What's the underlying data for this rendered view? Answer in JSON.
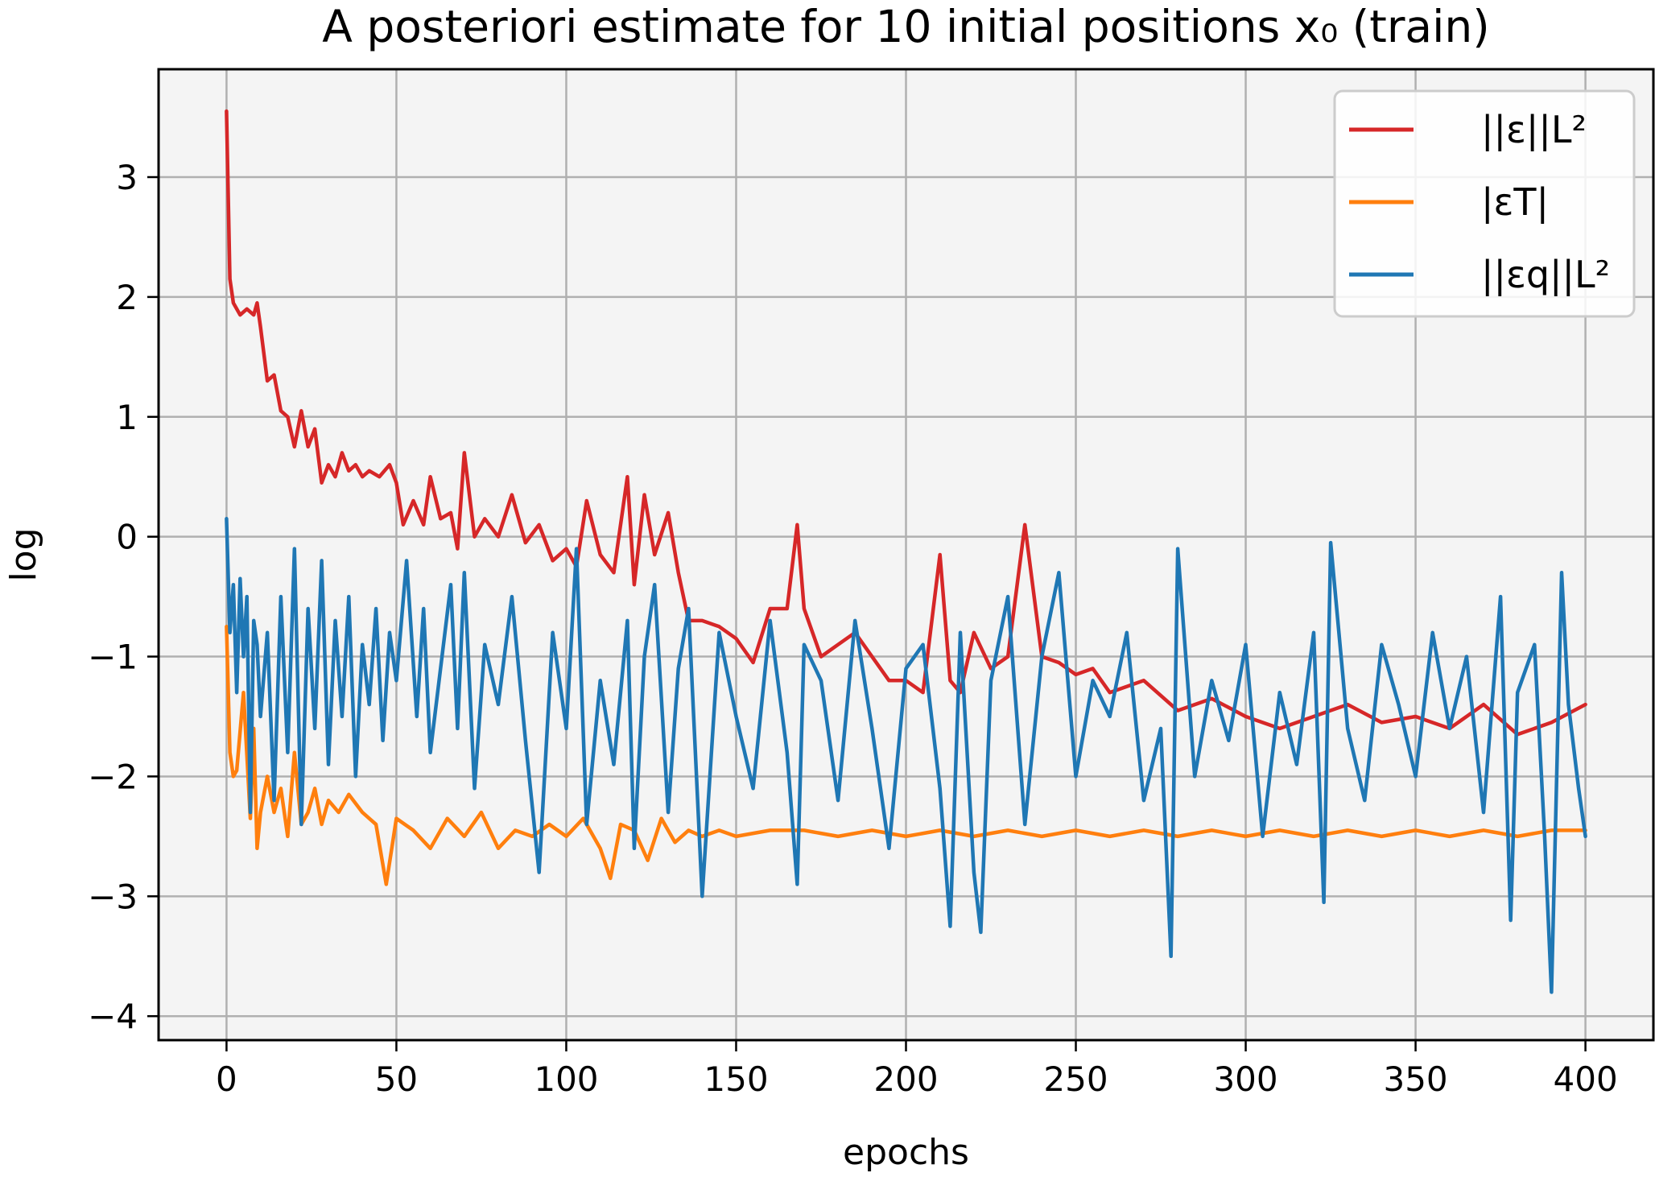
{
  "chart_data": {
    "type": "line",
    "title": "A posteriori estimate for 10 initial positions x₀ (train)",
    "xlabel": "epochs",
    "ylabel": "log",
    "xlim": [
      -20,
      420
    ],
    "ylim": [
      -4.2,
      3.9
    ],
    "xticks": [
      0,
      50,
      100,
      150,
      200,
      250,
      300,
      350,
      400
    ],
    "yticks": [
      3,
      2,
      1,
      0,
      -1,
      -2,
      -3,
      -4
    ],
    "ytick_labels": [
      "3",
      "2",
      "1",
      "0",
      "−1",
      "−2",
      "−3",
      "−4"
    ],
    "grid": true,
    "legend_position": "upper-right",
    "series": [
      {
        "name": "||ε||L²",
        "color": "#d62728",
        "x": [
          0,
          1,
          2,
          4,
          6,
          8,
          9,
          10,
          12,
          14,
          16,
          18,
          20,
          22,
          24,
          26,
          28,
          30,
          32,
          34,
          36,
          38,
          40,
          42,
          45,
          48,
          50,
          52,
          55,
          58,
          60,
          63,
          66,
          68,
          70,
          73,
          76,
          80,
          84,
          88,
          92,
          96,
          100,
          103,
          106,
          110,
          114,
          118,
          120,
          123,
          126,
          130,
          133,
          136,
          140,
          145,
          150,
          155,
          160,
          165,
          168,
          170,
          175,
          180,
          185,
          190,
          195,
          200,
          205,
          210,
          213,
          216,
          220,
          225,
          230,
          235,
          240,
          245,
          250,
          255,
          260,
          270,
          280,
          290,
          300,
          310,
          320,
          330,
          340,
          350,
          360,
          370,
          380,
          390,
          400
        ],
        "y": [
          3.55,
          2.15,
          1.95,
          1.85,
          1.9,
          1.85,
          1.95,
          1.75,
          1.3,
          1.35,
          1.05,
          1.0,
          0.75,
          1.05,
          0.75,
          0.9,
          0.45,
          0.6,
          0.5,
          0.7,
          0.55,
          0.6,
          0.5,
          0.55,
          0.5,
          0.6,
          0.45,
          0.1,
          0.3,
          0.1,
          0.5,
          0.15,
          0.2,
          -0.1,
          0.7,
          0.0,
          0.15,
          0.0,
          0.35,
          -0.05,
          0.1,
          -0.2,
          -0.1,
          -0.25,
          0.3,
          -0.15,
          -0.3,
          0.5,
          -0.4,
          0.35,
          -0.15,
          0.2,
          -0.3,
          -0.7,
          -0.7,
          -0.75,
          -0.85,
          -1.05,
          -0.6,
          -0.6,
          0.1,
          -0.6,
          -1.0,
          -0.9,
          -0.8,
          -1.0,
          -1.2,
          -1.2,
          -1.3,
          -0.15,
          -1.2,
          -1.3,
          -0.8,
          -1.1,
          -1.0,
          0.1,
          -1.0,
          -1.05,
          -1.15,
          -1.1,
          -1.3,
          -1.2,
          -1.45,
          -1.35,
          -1.5,
          -1.6,
          -1.5,
          -1.4,
          -1.55,
          -1.5,
          -1.6,
          -1.4,
          -1.65,
          -1.55,
          -1.4
        ]
      },
      {
        "name": "|εT|",
        "color": "#ff7f0e",
        "x": [
          0,
          1,
          2,
          3,
          5,
          7,
          8,
          9,
          10,
          12,
          14,
          16,
          18,
          20,
          22,
          24,
          26,
          28,
          30,
          33,
          36,
          40,
          44,
          47,
          50,
          55,
          60,
          65,
          70,
          75,
          80,
          85,
          90,
          95,
          100,
          105,
          110,
          113,
          116,
          120,
          124,
          128,
          132,
          136,
          140,
          145,
          150,
          160,
          170,
          180,
          190,
          200,
          210,
          220,
          230,
          240,
          250,
          260,
          270,
          280,
          290,
          300,
          310,
          320,
          330,
          340,
          350,
          360,
          370,
          380,
          390,
          400
        ],
        "y": [
          -0.75,
          -1.8,
          -2.0,
          -1.95,
          -1.3,
          -2.35,
          -1.6,
          -2.6,
          -2.3,
          -2.0,
          -2.3,
          -2.1,
          -2.5,
          -1.8,
          -2.4,
          -2.3,
          -2.1,
          -2.4,
          -2.2,
          -2.3,
          -2.15,
          -2.3,
          -2.4,
          -2.9,
          -2.35,
          -2.45,
          -2.6,
          -2.35,
          -2.5,
          -2.3,
          -2.6,
          -2.45,
          -2.5,
          -2.4,
          -2.5,
          -2.35,
          -2.6,
          -2.85,
          -2.4,
          -2.45,
          -2.7,
          -2.35,
          -2.55,
          -2.45,
          -2.5,
          -2.45,
          -2.5,
          -2.45,
          -2.45,
          -2.5,
          -2.45,
          -2.5,
          -2.45,
          -2.5,
          -2.45,
          -2.5,
          -2.45,
          -2.5,
          -2.45,
          -2.5,
          -2.45,
          -2.5,
          -2.45,
          -2.5,
          -2.45,
          -2.5,
          -2.45,
          -2.5,
          -2.45,
          -2.5,
          -2.45,
          -2.45
        ]
      },
      {
        "name": "||εq||L²",
        "color": "#1f77b4",
        "x": [
          0,
          1,
          2,
          3,
          4,
          5,
          6,
          7,
          8,
          9,
          10,
          12,
          14,
          16,
          18,
          20,
          22,
          24,
          26,
          28,
          30,
          32,
          34,
          36,
          38,
          40,
          42,
          44,
          46,
          48,
          50,
          53,
          56,
          58,
          60,
          63,
          66,
          68,
          70,
          73,
          76,
          80,
          84,
          88,
          92,
          96,
          100,
          103,
          106,
          110,
          114,
          118,
          120,
          123,
          126,
          130,
          133,
          136,
          140,
          145,
          150,
          155,
          160,
          165,
          168,
          170,
          175,
          180,
          185,
          190,
          195,
          200,
          205,
          210,
          213,
          216,
          220,
          222,
          225,
          230,
          235,
          240,
          245,
          250,
          255,
          260,
          265,
          270,
          275,
          278,
          280,
          285,
          290,
          295,
          300,
          305,
          310,
          315,
          320,
          323,
          325,
          330,
          335,
          340,
          345,
          350,
          355,
          360,
          365,
          370,
          375,
          378,
          380,
          385,
          388,
          390,
          393,
          395,
          398,
          400
        ],
        "y": [
          0.15,
          -0.8,
          -0.4,
          -1.3,
          -0.35,
          -1.0,
          -0.5,
          -2.3,
          -0.7,
          -0.9,
          -1.5,
          -0.8,
          -2.2,
          -0.5,
          -1.8,
          -0.1,
          -2.4,
          -0.6,
          -1.6,
          -0.2,
          -1.9,
          -0.7,
          -1.5,
          -0.5,
          -2.0,
          -0.9,
          -1.4,
          -0.6,
          -1.7,
          -0.8,
          -1.2,
          -0.2,
          -1.5,
          -0.6,
          -1.8,
          -1.1,
          -0.4,
          -1.6,
          -0.3,
          -2.1,
          -0.9,
          -1.4,
          -0.5,
          -1.7,
          -2.8,
          -0.8,
          -1.6,
          -0.1,
          -2.4,
          -1.2,
          -1.9,
          -0.7,
          -2.6,
          -1.0,
          -0.4,
          -2.3,
          -1.1,
          -0.6,
          -3.0,
          -0.8,
          -1.5,
          -2.1,
          -0.7,
          -1.8,
          -2.9,
          -0.9,
          -1.2,
          -2.2,
          -0.7,
          -1.6,
          -2.6,
          -1.1,
          -0.9,
          -2.1,
          -3.25,
          -0.8,
          -2.8,
          -3.3,
          -1.2,
          -0.5,
          -2.4,
          -1.0,
          -0.3,
          -2.0,
          -1.2,
          -1.5,
          -0.8,
          -2.2,
          -1.6,
          -3.5,
          -0.1,
          -2.0,
          -1.2,
          -1.7,
          -0.9,
          -2.5,
          -1.3,
          -1.9,
          -0.8,
          -3.05,
          -0.05,
          -1.6,
          -2.2,
          -0.9,
          -1.4,
          -2.0,
          -0.8,
          -1.6,
          -1.0,
          -2.3,
          -0.5,
          -3.2,
          -1.3,
          -0.9,
          -2.5,
          -3.8,
          -0.3,
          -1.4,
          -2.1,
          -2.5
        ]
      }
    ]
  }
}
